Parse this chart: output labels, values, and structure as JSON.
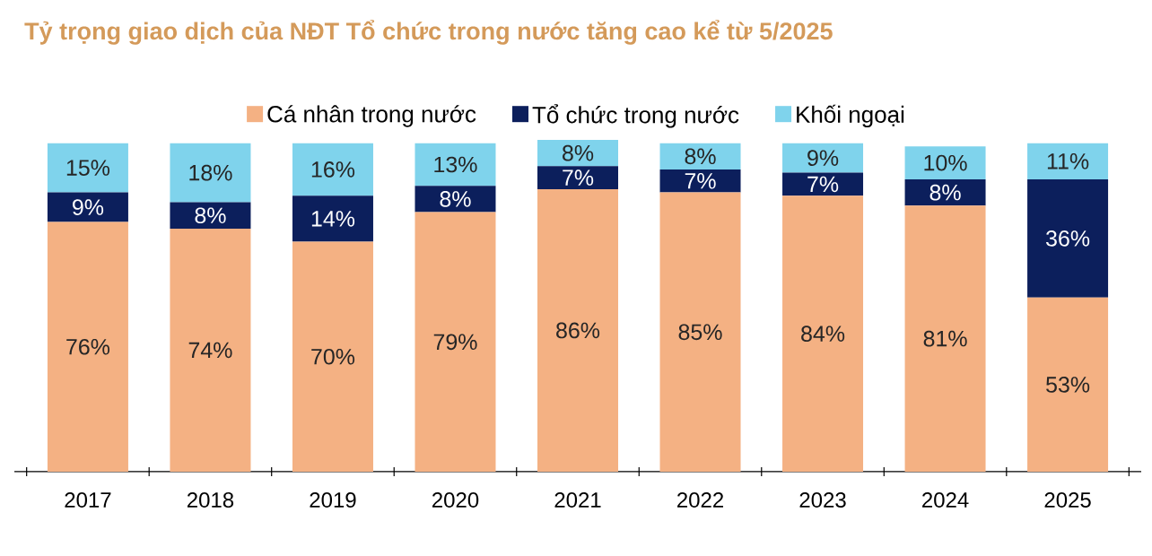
{
  "chart_data": {
    "type": "bar",
    "title": "Tỷ trọng giao dịch của NĐT Tổ chức trong nước tăng cao kể từ 5/2025",
    "categories": [
      "2017",
      "2018",
      "2019",
      "2020",
      "2021",
      "2022",
      "2023",
      "2024",
      "2025"
    ],
    "stacked": true,
    "legend": "top",
    "series": [
      {
        "name": "Cá nhân trong nước",
        "color": "#f4b183",
        "values": [
          76,
          74,
          70,
          79,
          86,
          85,
          84,
          81,
          53
        ],
        "value_labels": [
          "76%",
          "74%",
          "70%",
          "79%",
          "86%",
          "85%",
          "84%",
          "81%",
          "53%"
        ]
      },
      {
        "name": "Tổ chức trong nước",
        "color": "#0c1f5c",
        "values": [
          9,
          8,
          14,
          8,
          7,
          7,
          7,
          8,
          36
        ],
        "value_labels": [
          "9%",
          "8%",
          "14%",
          "8%",
          "7%",
          "7%",
          "7%",
          "8%",
          "36%"
        ]
      },
      {
        "name": "Khối ngoại",
        "color": "#7fd3ec",
        "values": [
          15,
          18,
          16,
          13,
          8,
          8,
          9,
          10,
          11
        ],
        "value_labels": [
          "15%",
          "18%",
          "16%",
          "13%",
          "8%",
          "8%",
          "9%",
          "10%",
          "11%"
        ]
      }
    ]
  }
}
